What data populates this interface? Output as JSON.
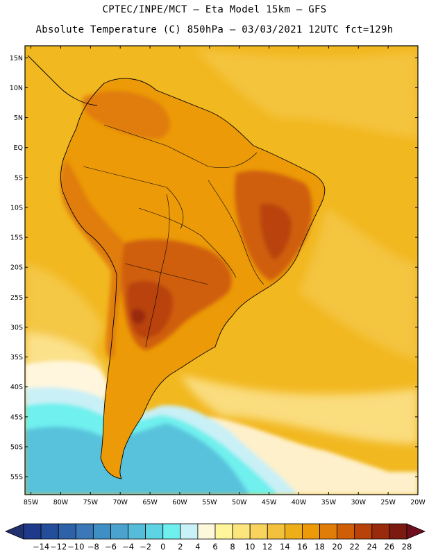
{
  "title": {
    "line1": "CPTEC/INPE/MCT –  Eta Model 15km – GFS",
    "line2": "Absolute Temperature (C) 850hPa – 03/03/2021 12UTC fct=129h"
  },
  "axes": {
    "lat_labels": [
      "15N",
      "10N",
      "5N",
      "EQ",
      "5S",
      "10S",
      "15S",
      "20S",
      "25S",
      "30S",
      "35S",
      "40S",
      "45S",
      "50S",
      "55S"
    ],
    "lat_values": [
      15,
      10,
      5,
      0,
      -5,
      -10,
      -15,
      -20,
      -25,
      -30,
      -35,
      -40,
      -45,
      -50,
      -55
    ],
    "lon_labels": [
      "85W",
      "80W",
      "75W",
      "70W",
      "65W",
      "60W",
      "55W",
      "50W",
      "45W",
      "40W",
      "35W",
      "30W",
      "25W",
      "20W"
    ],
    "lon_values": [
      -85,
      -80,
      -75,
      -70,
      -65,
      -60,
      -55,
      -50,
      -45,
      -40,
      -35,
      -30,
      -25,
      -20
    ],
    "lat_range": [
      -58,
      17
    ],
    "lon_range": [
      -86,
      -20
    ]
  },
  "colorbar": {
    "labels": [
      "-14",
      "-12",
      "-10",
      "-8",
      "-6",
      "-4",
      "-2",
      "0",
      "2",
      "4",
      "6",
      "8",
      "10",
      "12",
      "14",
      "16",
      "18",
      "20",
      "22",
      "24",
      "26",
      "28"
    ],
    "colors": [
      "#1f3a8a",
      "#244d9a",
      "#2d62a8",
      "#3c78b7",
      "#3f8fc4",
      "#4aa3cf",
      "#55bcd9",
      "#5dd3e3",
      "#6ff0ee",
      "#c8f2f7",
      "#fdf7dc",
      "#fff59a",
      "#fde57d",
      "#f8d45e",
      "#f2c23e",
      "#eeae1a",
      "#ec9a07",
      "#e07d08",
      "#cf5e07",
      "#b9420a",
      "#992a0c",
      "#7a1a10"
    ],
    "low_arrow_color": "#21306f",
    "high_arrow_color": "#6e0e1e"
  },
  "map_colors": {
    "ocean_warm": "#f2b820",
    "ocean_mid": "#f5cd55",
    "ocean_cool": "#fbe38e",
    "cream": "#fff6dd",
    "pale_cyan": "#c9f0f6",
    "cyan": "#6ff0ee",
    "light_blue": "#55bcd9",
    "continent_base": "#ec9a07",
    "hot1": "#e07d08",
    "hot2": "#cf5e07",
    "hot3": "#b9420a",
    "hot4": "#992a0c"
  }
}
